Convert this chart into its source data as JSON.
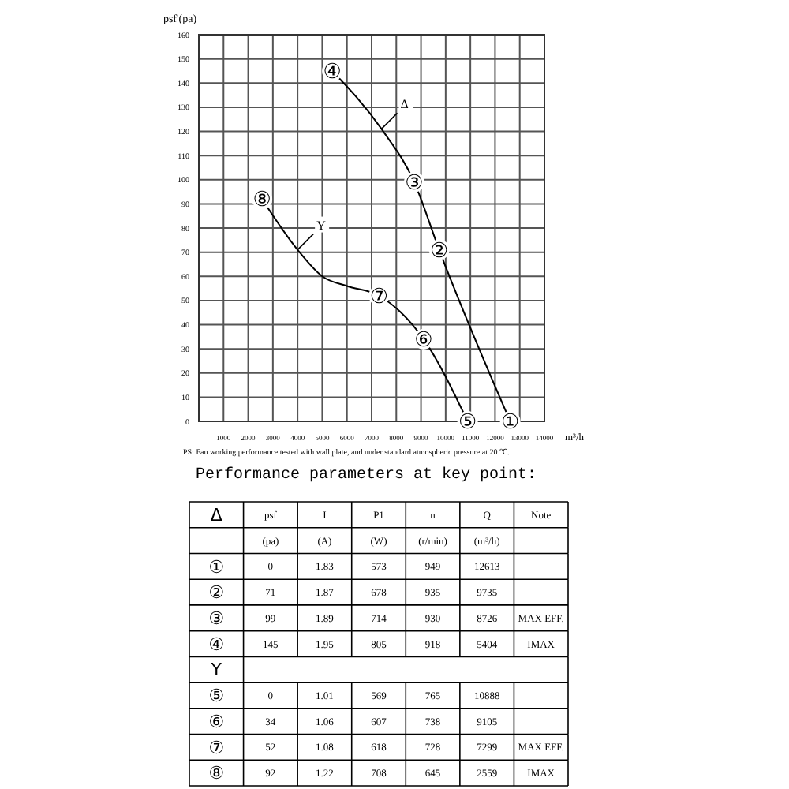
{
  "chart_data": {
    "type": "line",
    "ylabel": "psf'(pa)",
    "xlabel": "m³/h",
    "xlim": [
      0,
      14000
    ],
    "xticks": [
      {
        "value": 0,
        "label": null
      },
      1000,
      2000,
      3000,
      4000,
      5000,
      6000,
      7000,
      8000,
      9000,
      10000,
      11000,
      12000,
      13000,
      14000
    ],
    "ylim": [
      0,
      160
    ],
    "yticks": [
      0,
      10,
      20,
      30,
      40,
      50,
      60,
      70,
      80,
      90,
      100,
      110,
      120,
      130,
      140,
      150,
      160
    ],
    "grid": true,
    "marker": "circle",
    "line_style": "solid",
    "series": [
      {
        "name": "Δ",
        "color": "#000000",
        "x": [
          5404,
          7400,
          8726,
          9735,
          12613
        ],
        "values": [
          145,
          121,
          99,
          71,
          0
        ],
        "value_labels": [
          "④",
          null,
          "③",
          "②",
          "①"
        ]
      },
      {
        "name": "Y",
        "color": "#000000",
        "x": [
          2559,
          4000,
          5000,
          6000,
          7299,
          9105,
          10888
        ],
        "values": [
          92,
          71,
          60,
          56,
          52,
          34,
          0
        ],
        "value_labels": [
          "⑧",
          null,
          null,
          null,
          "⑦",
          "⑥",
          "⑤"
        ]
      }
    ],
    "annotations": [
      "PS: Fan working performance tested with wall plate, and under standard atmospheric pressure at 20 ℃.",
      "Performance parameters at key point:",
      "Δ",
      "psf",
      "I",
      "P1",
      "n",
      "Q",
      "Note",
      null,
      "(pa)",
      "(A)",
      "(W)",
      "(r/min)",
      "(m³/h)",
      null,
      "①",
      "0",
      "1.83",
      "573",
      "949",
      "12613",
      null,
      "②",
      "71",
      "1.87",
      "678",
      "935",
      "9735",
      null,
      "③",
      "99",
      "1.89",
      "714",
      "930",
      "8726",
      "MAX EFF.",
      "④",
      "145",
      "1.95",
      "805",
      "918",
      "5404",
      "IMAX",
      "Y",
      null,
      null,
      null,
      null,
      null,
      null,
      "⑤",
      "0",
      "1.01",
      "569",
      "765",
      "10888",
      null,
      "⑥",
      "34",
      "1.06",
      "607",
      "738",
      "9105",
      null,
      "⑦",
      "52",
      "1.08",
      "618",
      "728",
      "7299",
      "MAX EFF.",
      "⑧",
      "92",
      "1.22",
      "708",
      "645",
      "2559",
      "IMAX"
    ]
  }
}
